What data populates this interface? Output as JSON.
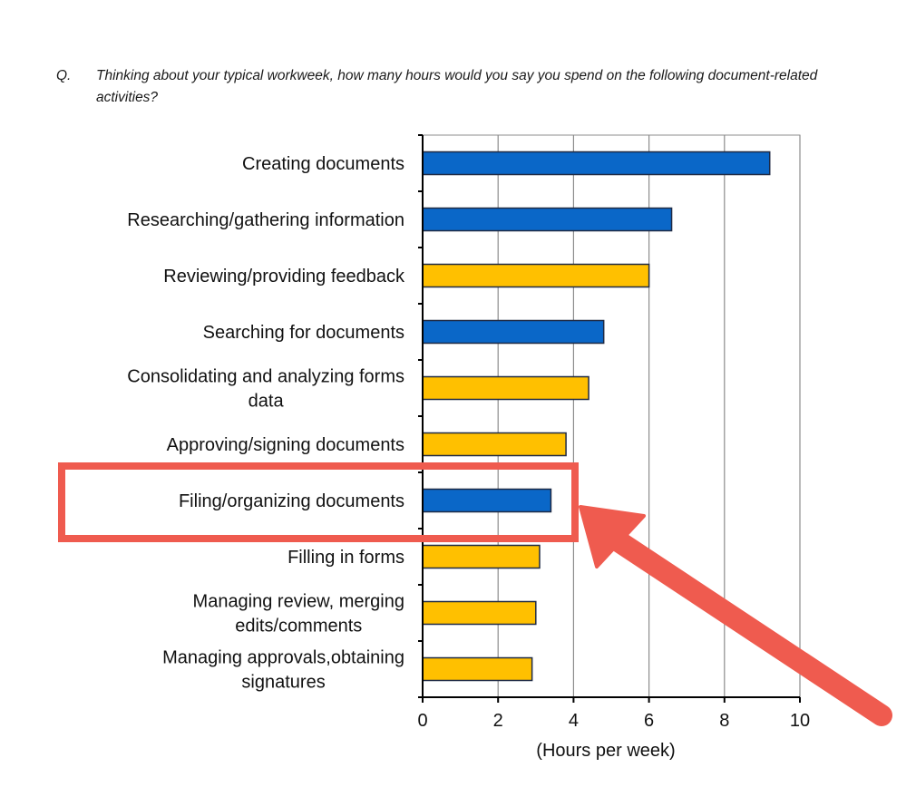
{
  "question": {
    "prefix": "Q.",
    "text": "Thinking about your typical workweek, how many hours would you say you spend on the following document-related activities?"
  },
  "chart_data": {
    "type": "bar",
    "orientation": "horizontal",
    "categories": [
      "Creating documents",
      "Researching/gathering information",
      "Reviewing/providing feedback",
      "Searching for documents",
      "Consolidating and analyzing forms data",
      "Approving/signing documents",
      "Filing/organizing documents",
      "Filling in forms",
      "Managing review, merging edits/comments",
      "Managing approvals,obtaining signatures"
    ],
    "category_lines": [
      [
        "Creating documents"
      ],
      [
        "Researching/gathering information"
      ],
      [
        "Reviewing/providing feedback"
      ],
      [
        "Searching for documents"
      ],
      [
        "Consolidating and analyzing forms",
        "data"
      ],
      [
        "Approving/signing documents"
      ],
      [
        "Filing/organizing documents"
      ],
      [
        "Filling in forms"
      ],
      [
        "Managing review, merging",
        "edits/comments"
      ],
      [
        "Managing approvals,obtaining",
        "signatures"
      ]
    ],
    "values": [
      9.2,
      6.6,
      6.0,
      4.8,
      4.4,
      3.8,
      3.4,
      3.1,
      3.0,
      2.9
    ],
    "bar_colors": [
      "#0a67c8",
      "#0a67c8",
      "#ffc000",
      "#0a67c8",
      "#ffc000",
      "#ffc000",
      "#0a67c8",
      "#ffc000",
      "#ffc000",
      "#ffc000"
    ],
    "x_ticks": [
      0,
      2,
      4,
      6,
      8,
      10
    ],
    "xlim": [
      0,
      10
    ],
    "xlabel": "(Hours per week)",
    "grid": true,
    "highlight_category": "Filing/organizing documents",
    "highlight_color": "#ef5b4f"
  }
}
